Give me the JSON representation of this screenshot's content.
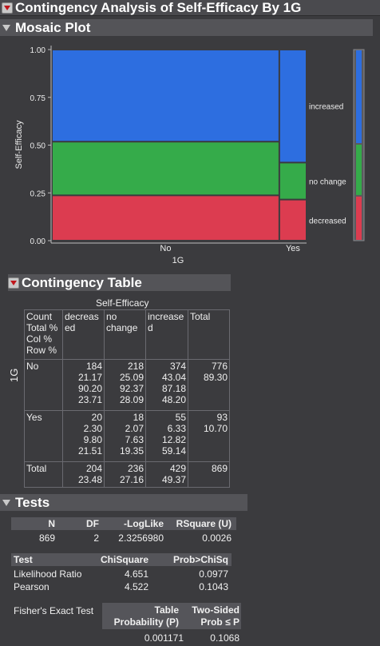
{
  "report": {
    "title": "Contingency Analysis of Self-Efficacy By 1G"
  },
  "mosaic": {
    "section_title": "Mosaic Plot",
    "y_axis_title": "Self-Efficacy",
    "x_axis_title": "1G",
    "y_ticks": [
      "1.00",
      "0.75",
      "0.50",
      "0.25",
      "0.00"
    ],
    "x_categories": [
      "No",
      "Yes"
    ],
    "legend_labels": [
      "increased",
      "no change",
      "decreased"
    ],
    "colors": {
      "increased": "#2d6ee0",
      "no change": "#35ab4a",
      "decreased": "#dc3c50"
    }
  },
  "chart_data": {
    "type": "mosaic",
    "x_categories": [
      "No",
      "Yes"
    ],
    "x_widths": [
      0.893,
      0.107
    ],
    "y_levels": [
      "decreased",
      "no change",
      "increased"
    ],
    "proportions": {
      "No": {
        "decreased": 0.2371,
        "no change": 0.2809,
        "increased": 0.482
      },
      "Yes": {
        "decreased": 0.2151,
        "no change": 0.1935,
        "increased": 0.5914
      }
    },
    "marginal": {
      "decreased": 0.2348,
      "no change": 0.2716,
      "increased": 0.4937
    },
    "ylim": [
      0,
      1
    ],
    "ylabel": "Self-Efficacy",
    "xlabel": "1G"
  },
  "contingency": {
    "section_title": "Contingency Table",
    "col_var": "Self-Efficacy",
    "row_var": "1G",
    "legend": [
      "Count",
      "Total %",
      "Col %",
      "Row %"
    ],
    "col_headers": [
      "decreas ed",
      "no change",
      "increase d",
      "Total"
    ],
    "rows": [
      {
        "label": "No",
        "cells": [
          [
            "184",
            "21.17",
            "90.20",
            "23.71"
          ],
          [
            "218",
            "25.09",
            "92.37",
            "28.09"
          ],
          [
            "374",
            "43.04",
            "87.18",
            "48.20"
          ],
          [
            "776",
            "89.30",
            "",
            ""
          ]
        ]
      },
      {
        "label": "Yes",
        "cells": [
          [
            "20",
            "2.30",
            "9.80",
            "21.51"
          ],
          [
            "18",
            "2.07",
            "7.63",
            "19.35"
          ],
          [
            "55",
            "6.33",
            "12.82",
            "59.14"
          ],
          [
            "93",
            "10.70",
            "",
            ""
          ]
        ]
      },
      {
        "label": "Total",
        "cells": [
          [
            "204",
            "23.48",
            "",
            ""
          ],
          [
            "236",
            "27.16",
            "",
            ""
          ],
          [
            "429",
            "49.37",
            "",
            ""
          ],
          [
            "869",
            "",
            "",
            ""
          ]
        ]
      }
    ]
  },
  "tests": {
    "section_title": "Tests",
    "summary_headers": [
      "N",
      "DF",
      "-LogLike",
      "RSquare (U)"
    ],
    "summary_values": [
      "869",
      "2",
      "2.3256980",
      "0.0026"
    ],
    "chi_headers": [
      "Test",
      "ChiSquare",
      "Prob>ChiSq"
    ],
    "chi_rows": [
      [
        "Likelihood Ratio",
        "4.651",
        "0.0977"
      ],
      [
        "Pearson",
        "4.522",
        "0.1043"
      ]
    ],
    "fisher_label": "Fisher's Exact Test",
    "fisher_headers": [
      "Table",
      "Probability (P)",
      "Two-Sided",
      "Prob ≤ P"
    ],
    "fisher_values": [
      "0.001171",
      "0.1068"
    ]
  }
}
